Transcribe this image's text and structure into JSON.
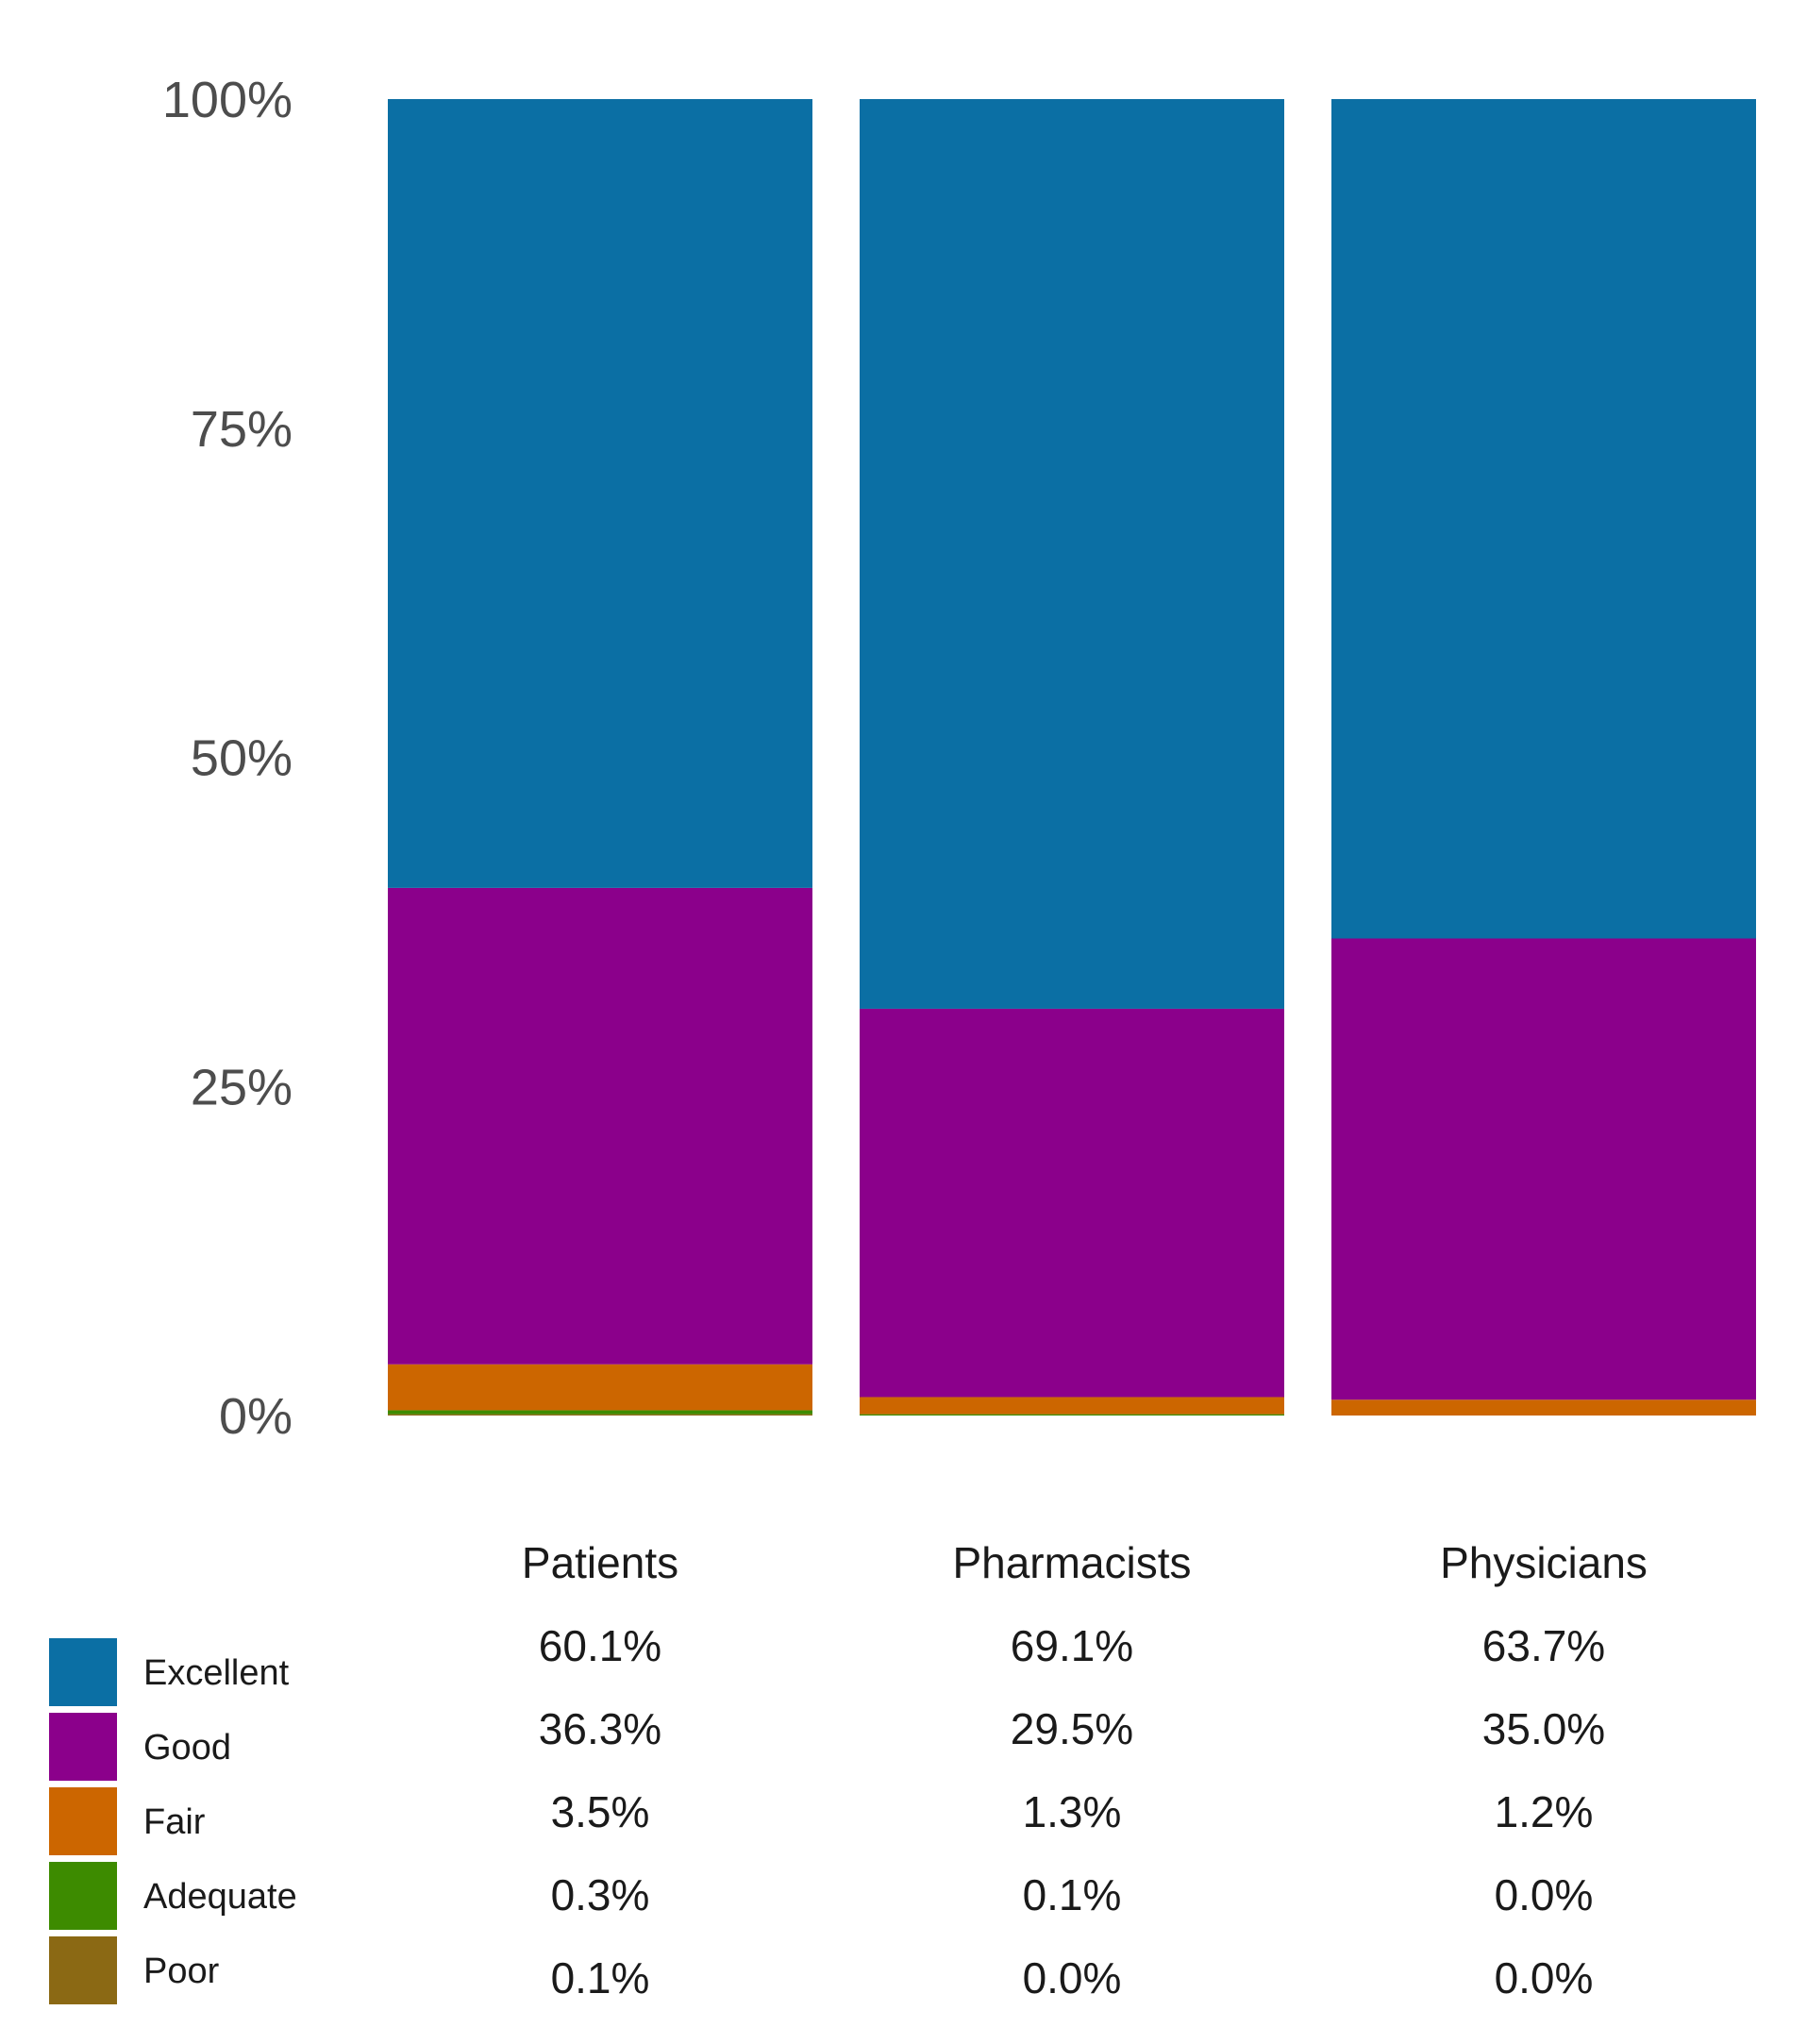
{
  "chart_data": {
    "type": "bar",
    "stacked": true,
    "categories": [
      "Patients",
      "Pharmacists",
      "Physicians"
    ],
    "series": [
      {
        "name": "Excellent",
        "color": "#0b6fa4",
        "values": [
          60.1,
          69.1,
          63.7
        ],
        "labels": [
          "60.1%",
          "69.1%",
          "63.7%"
        ]
      },
      {
        "name": "Good",
        "color": "#8b008b",
        "values": [
          36.3,
          29.5,
          35.0
        ],
        "labels": [
          "36.3%",
          "29.5%",
          "35.0%"
        ]
      },
      {
        "name": "Fair",
        "color": "#cc6600",
        "values": [
          3.5,
          1.3,
          1.2
        ],
        "labels": [
          "3.5%",
          "1.3%",
          "1.2%"
        ]
      },
      {
        "name": "Adequate",
        "color": "#3d8b00",
        "values": [
          0.3,
          0.1,
          0.0
        ],
        "labels": [
          "0.3%",
          "0.1%",
          "0.0%"
        ]
      },
      {
        "name": "Poor",
        "color": "#8b6914",
        "values": [
          0.1,
          0.0,
          0.0
        ],
        "labels": [
          "0.1%",
          "0.0%",
          "0.0%"
        ]
      }
    ],
    "yticks": [
      "0%",
      "25%",
      "50%",
      "75%",
      "100%"
    ],
    "ylim": [
      0,
      100
    ],
    "title": "",
    "xlabel": "",
    "ylabel": "",
    "grid": false,
    "legend_position": "bottom-left"
  }
}
